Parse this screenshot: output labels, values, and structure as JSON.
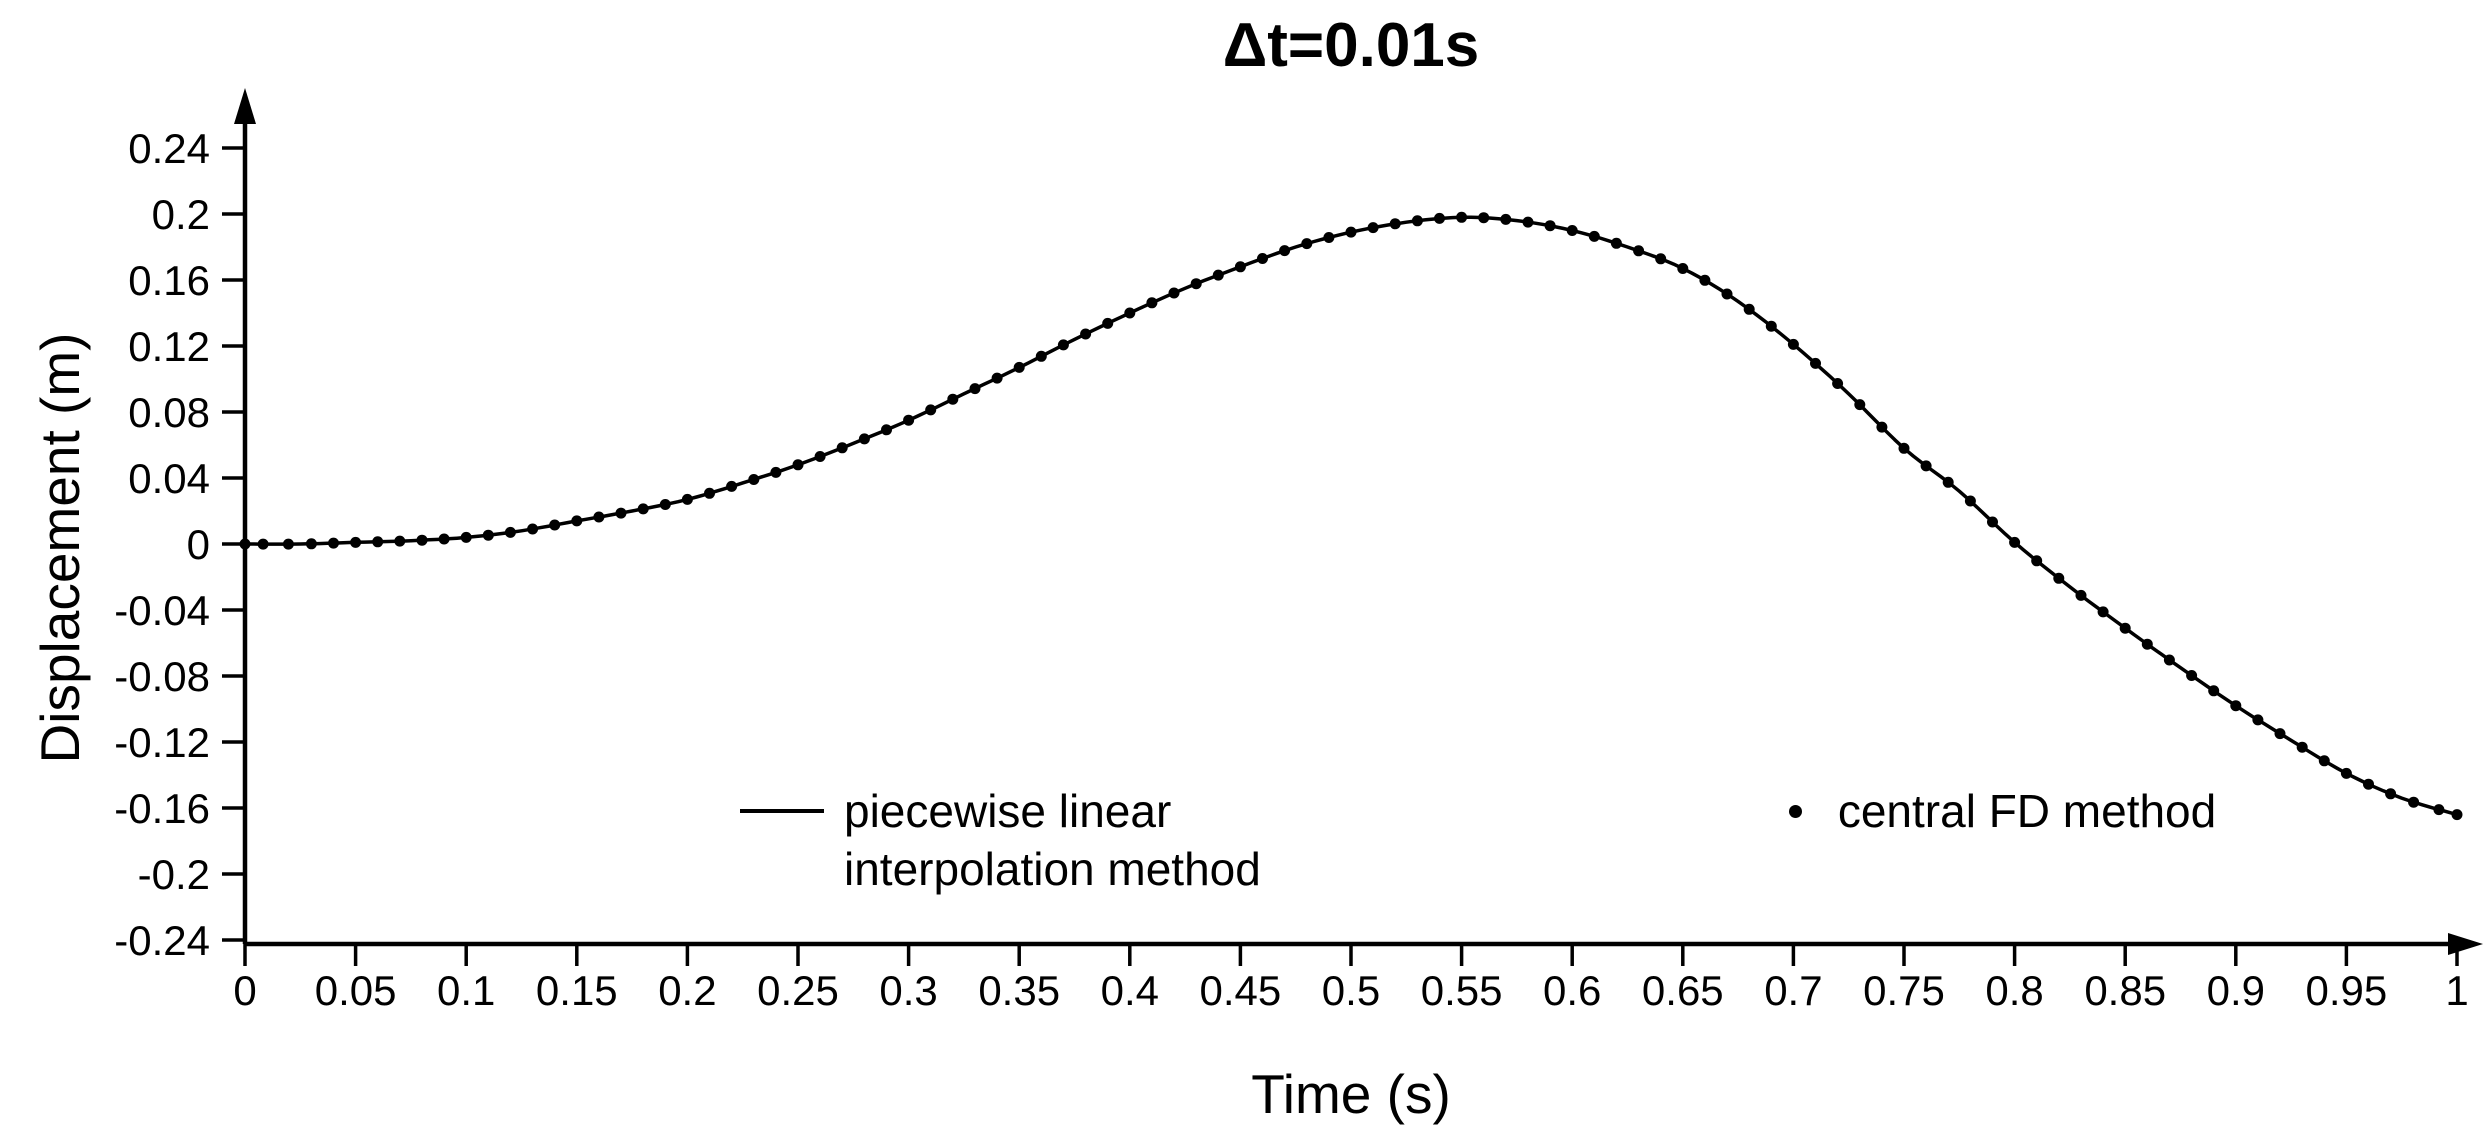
{
  "figure": {
    "background": "#ffffff",
    "text_color": "#000000",
    "accent_color": "#000000"
  },
  "chart_data": {
    "type": "line",
    "title": "Δt=0.01s",
    "xlabel": "Time (s)",
    "ylabel": "Displacement (m)",
    "xlim": [
      0,
      1
    ],
    "ylim": [
      -0.24,
      0.24
    ],
    "grid": false,
    "axis_arrows": true,
    "x_tick_values": [
      0,
      0.05,
      0.1,
      0.15,
      0.2,
      0.25,
      0.3,
      0.35,
      0.4,
      0.45,
      0.5,
      0.55,
      0.6,
      0.65,
      0.7,
      0.75,
      0.8,
      0.85,
      0.9,
      0.95,
      1
    ],
    "x_tick_labels": [
      "0",
      "0.05",
      "0.1",
      "0.15",
      "0.2",
      "0.25",
      "0.3",
      "0.35",
      "0.4",
      "0.45",
      "0.5",
      "0.55",
      "0.6",
      "0.65",
      "0.7",
      "0.75",
      "0.8",
      "0.85",
      "0.9",
      "0.95",
      "1"
    ],
    "y_tick_values": [
      0.24,
      0.2,
      0.16,
      0.12,
      0.08,
      0.04,
      0,
      -0.04,
      -0.08,
      -0.12,
      -0.16,
      -0.2,
      -0.24
    ],
    "y_tick_labels": [
      "0.24",
      "0.2",
      "0.16",
      "0.12",
      "0.08",
      "0.04",
      "0",
      "-0.04",
      "-0.08",
      "-0.12",
      "-0.16",
      "-0.2",
      "-0.24"
    ],
    "legend": {
      "position": "inside-bottom-center",
      "items": [
        {
          "marker": "line",
          "lines": [
            "piecewise linear",
            "interpolation method"
          ]
        },
        {
          "marker": "dot",
          "lines": [
            "central FD method"
          ]
        }
      ]
    },
    "series": [
      {
        "name": "piecewise linear interpolation method",
        "type": "line",
        "color": "#000000",
        "t": [
          0,
          0.025,
          0.05,
          0.075,
          0.1,
          0.125,
          0.15,
          0.175,
          0.2,
          0.225,
          0.25,
          0.275,
          0.3,
          0.325,
          0.35,
          0.375,
          0.4,
          0.425,
          0.45,
          0.475,
          0.5,
          0.525,
          0.55,
          0.575,
          0.6,
          0.625,
          0.65,
          0.675,
          0.7,
          0.725,
          0.75,
          0.775,
          0.8,
          0.825,
          0.85,
          0.875,
          0.9,
          0.925,
          0.95,
          0.975,
          1
        ],
        "displacement": [
          0.0,
          0.0,
          0.001,
          0.002,
          0.004,
          0.008,
          0.014,
          0.02,
          0.027,
          0.037,
          0.048,
          0.061,
          0.075,
          0.091,
          0.107,
          0.124,
          0.14,
          0.155,
          0.168,
          0.18,
          0.189,
          0.195,
          0.198,
          0.196,
          0.19,
          0.18,
          0.167,
          0.147,
          0.121,
          0.091,
          0.058,
          0.032,
          0.001,
          -0.026,
          -0.051,
          -0.075,
          -0.098,
          -0.119,
          -0.139,
          -0.154,
          -0.164
        ]
      },
      {
        "name": "central FD method",
        "type": "scatter",
        "color": "#000000",
        "marker": "dot",
        "t_start": 0,
        "t_end": 1,
        "t_step": 0.01,
        "follows_series": 0
      }
    ]
  }
}
